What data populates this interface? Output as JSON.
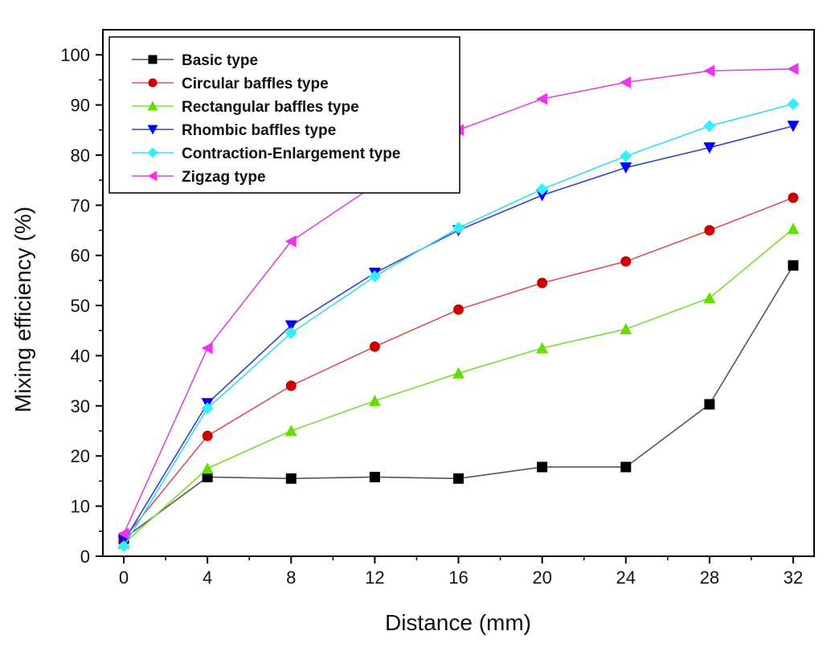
{
  "chart_data": {
    "type": "line",
    "xlabel": "Distance (mm)",
    "ylabel": "Mixing efficiency (%)",
    "xlim": [
      -1,
      33
    ],
    "ylim": [
      0,
      105
    ],
    "xticks": [
      0,
      4,
      8,
      12,
      16,
      20,
      24,
      28,
      32
    ],
    "yticks": [
      0,
      10,
      20,
      30,
      40,
      50,
      60,
      70,
      80,
      90,
      100
    ],
    "grid": false,
    "legend_position": "top-left",
    "x": [
      0,
      4,
      8,
      12,
      16,
      20,
      24,
      28,
      32
    ],
    "series": [
      {
        "name": "Basic type",
        "color": "#555555",
        "marker_color": "#000000",
        "marker": "square",
        "values": [
          3.5,
          15.8,
          15.5,
          15.8,
          15.5,
          17.8,
          17.8,
          30.3,
          58
        ]
      },
      {
        "name": "Circular baffles type",
        "color": "#e05050",
        "marker_color": "#cc0000",
        "marker": "circle",
        "values": [
          3.5,
          24,
          34,
          41.8,
          49.2,
          54.5,
          58.8,
          65,
          71.5
        ]
      },
      {
        "name": "Rectangular baffles type",
        "color": "#77dd33",
        "marker_color": "#66dd00",
        "marker": "triangle-up",
        "values": [
          2.5,
          17.5,
          25,
          31,
          36.5,
          41.5,
          45.3,
          51.5,
          65.3
        ]
      },
      {
        "name": "Rhombic baffles type",
        "color": "#3344cc",
        "marker_color": "#0000ff",
        "marker": "triangle-down",
        "values": [
          3,
          30.5,
          46,
          56.5,
          65,
          72,
          77.5,
          81.5,
          85.8
        ]
      },
      {
        "name": "Contraction-Enlargement type",
        "color": "#33ddee",
        "marker_color": "#33eeff",
        "marker": "diamond",
        "values": [
          2,
          29.5,
          44.5,
          55.8,
          65.5,
          73.2,
          79.8,
          85.8,
          90.2
        ]
      },
      {
        "name": "Zigzag type",
        "color": "#dd44dd",
        "marker_color": "#ee33ee",
        "marker": "triangle-left",
        "values": [
          4.5,
          41.5,
          62.8,
          74,
          85,
          91.2,
          94.5,
          96.8,
          97.2
        ]
      }
    ]
  }
}
